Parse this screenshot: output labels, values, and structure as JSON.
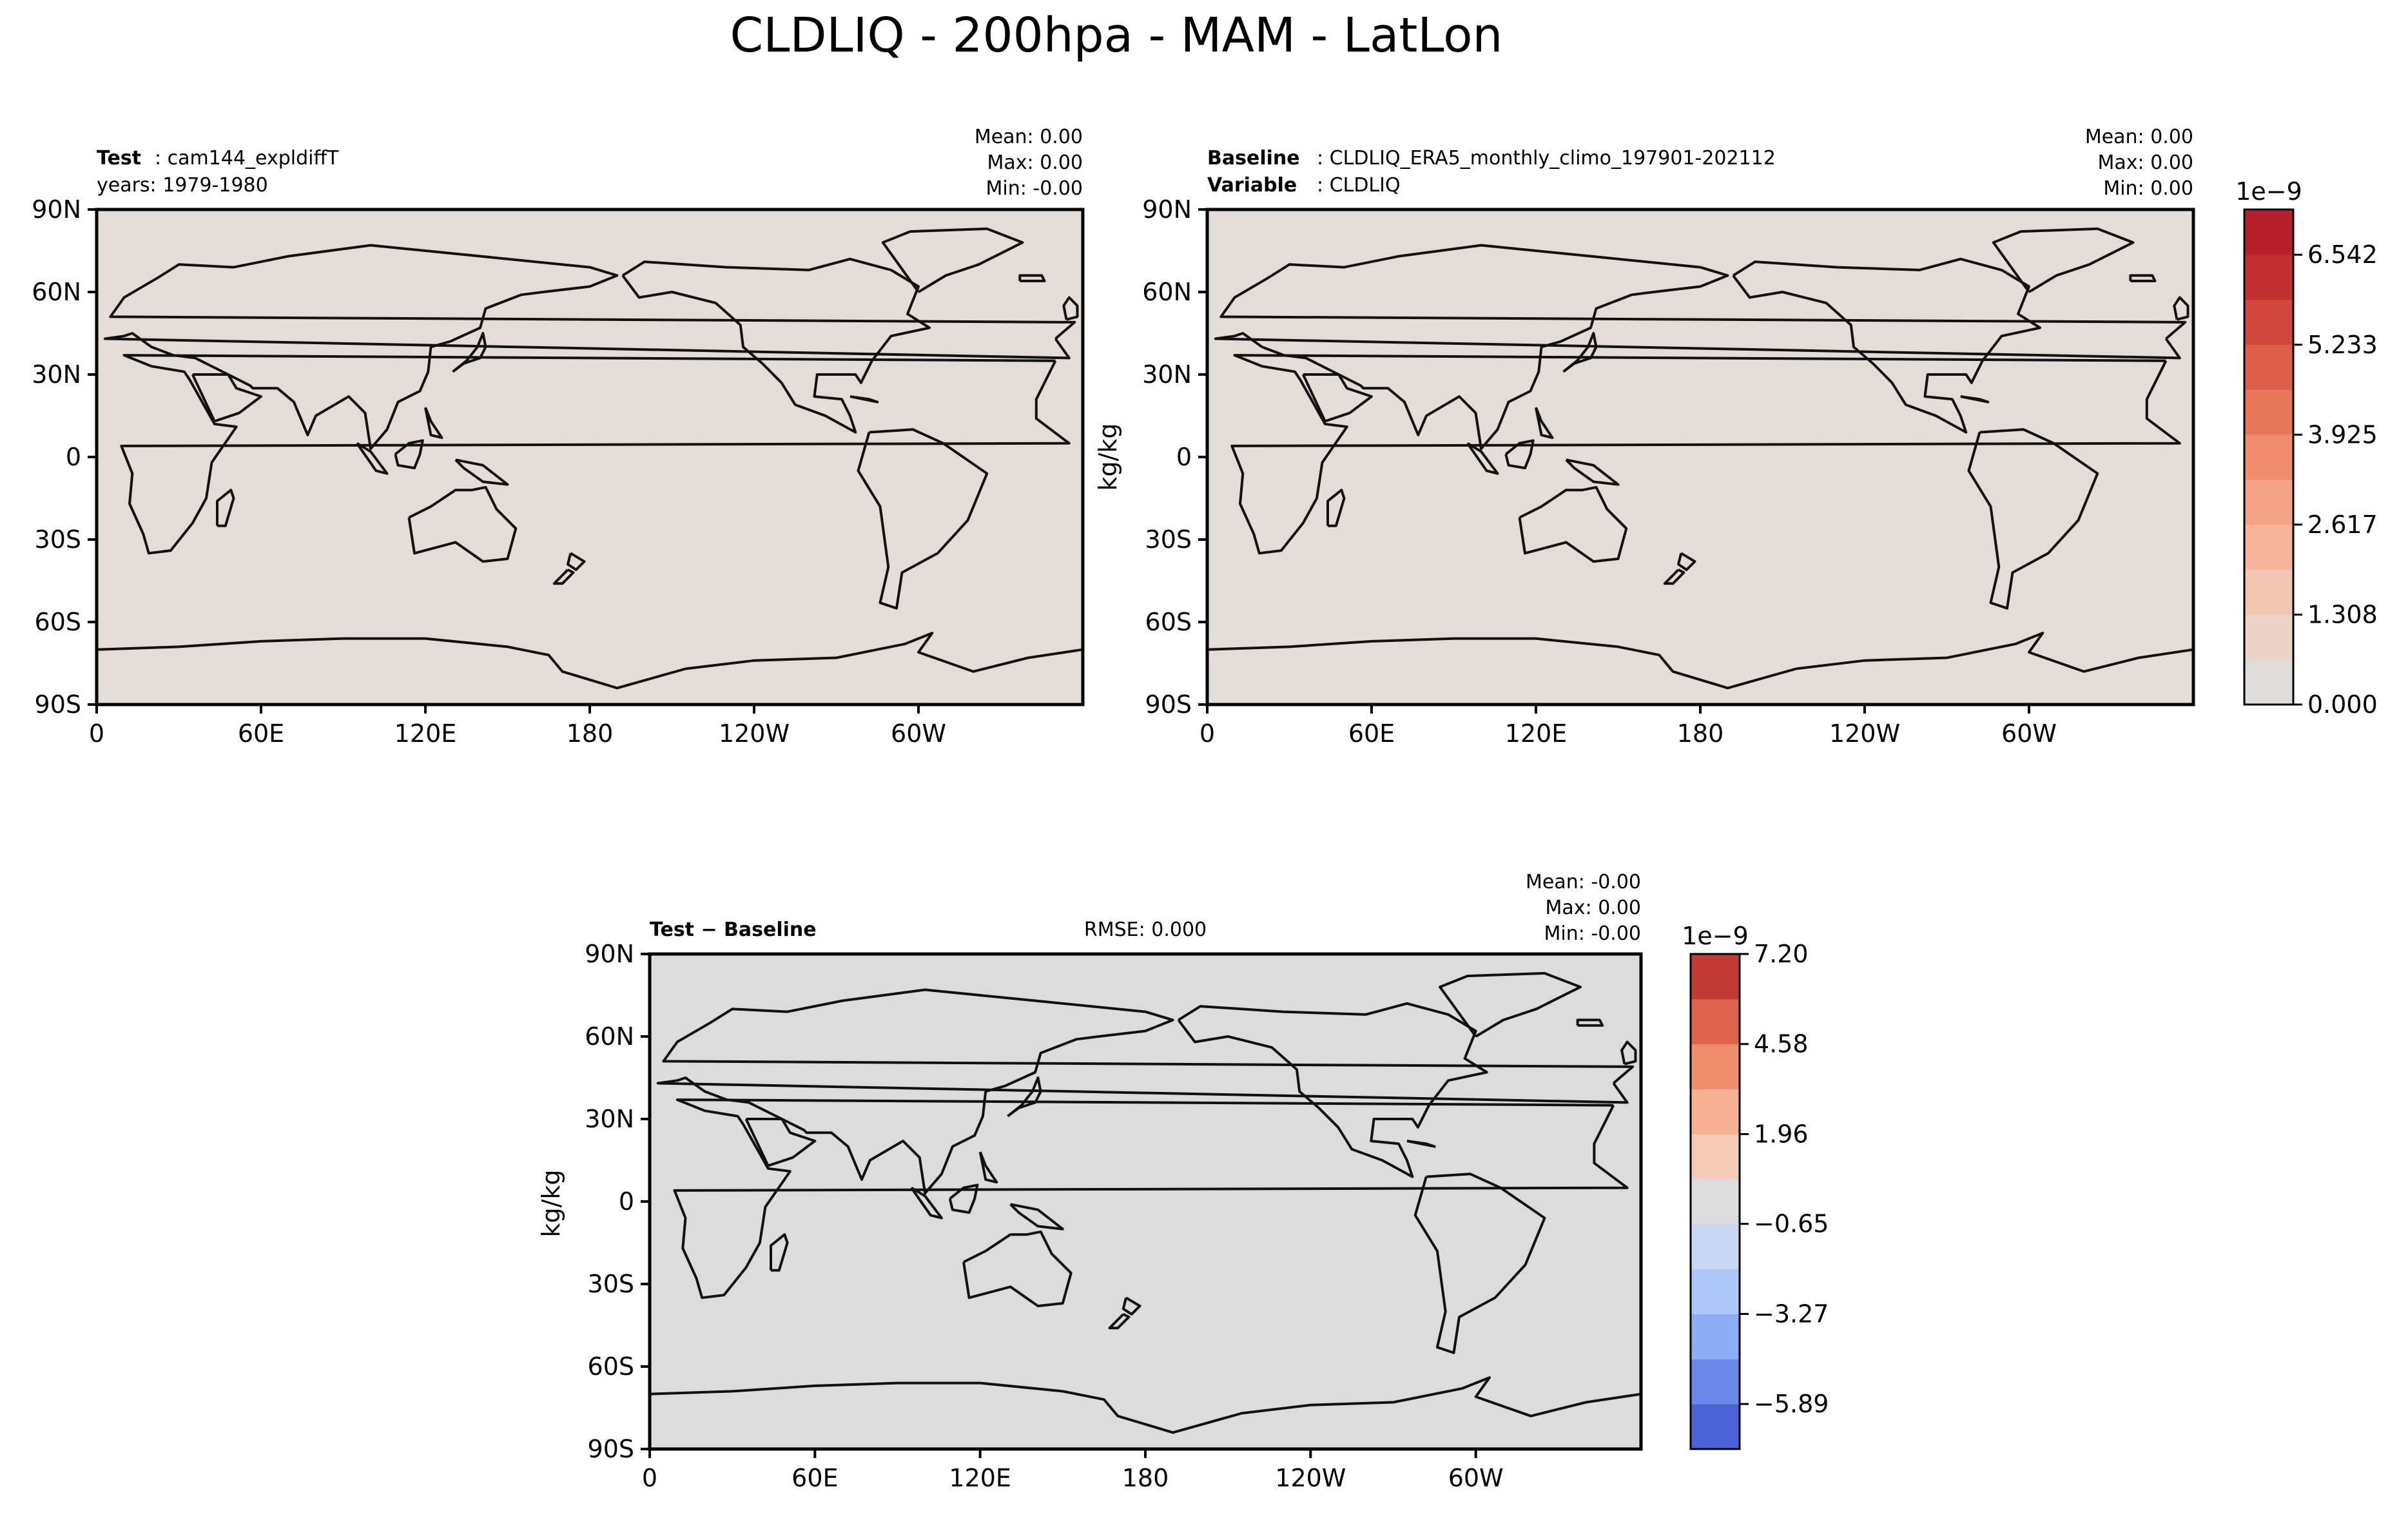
{
  "figure": {
    "title": "CLDLIQ - 200hpa - MAM - LatLon"
  },
  "colors": {
    "land_outline": "#111111",
    "panel_fill_test": "#e3dcd8",
    "panel_fill_diff": "#dcdcdc",
    "frame": "#000000"
  },
  "chart_data": [
    {
      "type": "heatmap",
      "panel": "test",
      "label_bold": "Test",
      "label_value": "cam144_expldiffT",
      "sublabel": "years: 1979-1980",
      "stats": {
        "mean": "Mean:  0.00",
        "max": "Max:  0.00",
        "min": "Min: -0.00"
      },
      "ylabel": "",
      "xlim": [
        0,
        360
      ],
      "ylim": [
        -90,
        90
      ],
      "x_ticks": [
        "0",
        "60E",
        "120E",
        "180",
        "120W",
        "60W"
      ],
      "y_ticks": [
        "90N",
        "60N",
        "30N",
        "0",
        "30S",
        "60S",
        "90S"
      ],
      "field_value": 0.0
    },
    {
      "type": "heatmap",
      "panel": "baseline",
      "label_bold": "Baseline",
      "label_value": "CLDLIQ_ERA5_monthly_climo_197901-202112",
      "sublabel_bold": "Variable",
      "sublabel_value": "CLDLIQ",
      "stats": {
        "mean": "Mean:  0.00",
        "max": "Max:  0.00",
        "min": "Min:  0.00"
      },
      "ylabel": "kg/kg",
      "xlim": [
        0,
        360
      ],
      "ylim": [
        -90,
        90
      ],
      "x_ticks": [
        "0",
        "60E",
        "120E",
        "180",
        "120W",
        "60W"
      ],
      "y_ticks": [
        "90N",
        "60N",
        "30N",
        "0",
        "30S",
        "60S",
        "90S"
      ],
      "field_value": 0.0,
      "colorbar": {
        "exponent": "1e−9",
        "range": [
          0.0,
          7.2
        ],
        "tick_labels": [
          "0.000",
          "1.308",
          "2.617",
          "3.925",
          "5.233",
          "6.542"
        ],
        "tick_values": [
          0.0,
          1.308,
          2.617,
          3.925,
          5.233,
          6.542
        ],
        "levels": 11,
        "colors": [
          "#dddcdb",
          "#ecd3c7",
          "#f3c5b3",
          "#f7b59a",
          "#f6a284",
          "#f08d6f",
          "#e8765b",
          "#dd5e4b",
          "#d1473d",
          "#c4302f",
          "#b81f2c"
        ]
      }
    },
    {
      "type": "heatmap",
      "panel": "difference",
      "label_bold": "Test − Baseline",
      "rmse": "RMSE: 0.000",
      "stats": {
        "mean": "Mean: -0.00",
        "max": "Max:  0.00",
        "min": "Min: -0.00"
      },
      "ylabel": "kg/kg",
      "xlim": [
        0,
        360
      ],
      "ylim": [
        -90,
        90
      ],
      "x_ticks": [
        "0",
        "60E",
        "120E",
        "180",
        "120W",
        "60W"
      ],
      "y_ticks": [
        "90N",
        "60N",
        "30N",
        "0",
        "30S",
        "60S",
        "90S"
      ],
      "field_value": 0.0,
      "colorbar": {
        "exponent": "1e−9",
        "range": [
          -7.2,
          7.2
        ],
        "tick_labels": [
          "−5.89",
          "−3.27",
          "−0.65",
          "1.96",
          "4.58",
          "7.20"
        ],
        "tick_values": [
          -5.89,
          -3.27,
          -0.65,
          1.96,
          4.58,
          7.2
        ],
        "levels": 11,
        "colors": [
          "#4b63d6",
          "#6a89ea",
          "#8daef5",
          "#aec8fb",
          "#c7d6f2",
          "#dcdcdc",
          "#f3cbb8",
          "#f5b094",
          "#ee8d6b",
          "#de6450",
          "#c43b36"
        ]
      }
    }
  ]
}
